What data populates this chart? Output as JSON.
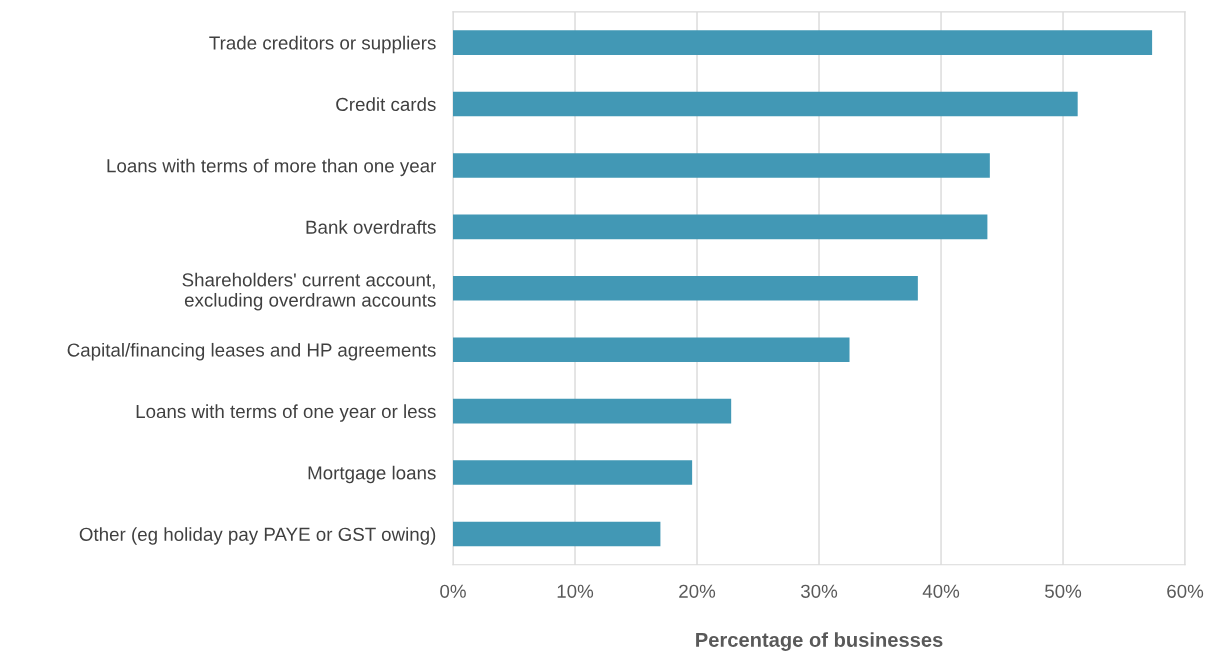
{
  "chart_data": {
    "type": "bar",
    "orientation": "horizontal",
    "xlabel": "Percentage of businesses",
    "categories": [
      "Trade creditors or suppliers",
      "Credit cards",
      "Loans with terms of more than one year",
      "Bank overdrafts",
      "Shareholders' current account,\nexcluding overdrawn accounts",
      "Capital/financing leases and HP agreements",
      "Loans with terms of one year or less",
      "Mortgage loans",
      "Other (eg holiday pay PAYE or GST owing)"
    ],
    "values": [
      57.3,
      51.2,
      44.0,
      43.8,
      38.1,
      32.5,
      22.8,
      19.6,
      17.0
    ],
    "color": "#4298b5",
    "xlim": [
      0,
      60
    ],
    "xticks": [
      {
        "value": 0,
        "label": "0%"
      },
      {
        "value": 10,
        "label": "10%"
      },
      {
        "value": 20,
        "label": "20%"
      },
      {
        "value": 30,
        "label": "30%"
      },
      {
        "value": 40,
        "label": "40%"
      },
      {
        "value": 50,
        "label": "50%"
      },
      {
        "value": 60,
        "label": "60%"
      }
    ],
    "grid": "x",
    "legend": false
  }
}
